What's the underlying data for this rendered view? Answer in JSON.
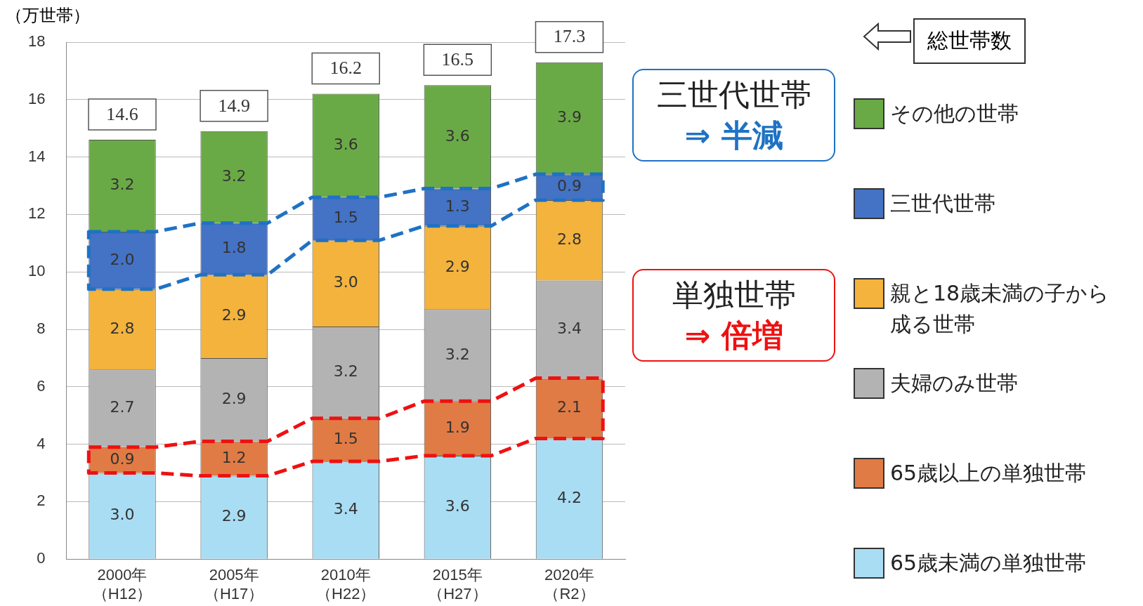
{
  "chart_data": {
    "type": "bar",
    "stacked": true,
    "ylabel": "（万世帯）",
    "legend_title": "総世帯数",
    "categories": [
      "2000年（H12）",
      "2005年（H17）",
      "2010年（H22）",
      "2015年（H27）",
      "2020年（R2）"
    ],
    "series": [
      {
        "name": "65歳未満の単独世帯",
        "color": "#a9ddf3",
        "values": [
          3.0,
          2.9,
          3.4,
          3.6,
          4.2
        ],
        "value_labels": [
          "3.0",
          "2.9",
          "3.4",
          "3.6",
          "4.2"
        ]
      },
      {
        "name": "65歳以上の単独世帯",
        "color": "#e07b45",
        "values": [
          0.9,
          1.2,
          1.5,
          1.9,
          2.1
        ],
        "value_labels": [
          "0.9",
          "1.2",
          "1.5",
          "1.9",
          "2.1"
        ]
      },
      {
        "name": "夫婦のみ世帯",
        "color": "#b3b3b3",
        "values": [
          2.7,
          2.9,
          3.2,
          3.2,
          3.4
        ],
        "value_labels": [
          "2.7",
          "2.9",
          "3.2",
          "3.2",
          "3.4"
        ]
      },
      {
        "name": "親と18歳未満の子から成る世帯",
        "color": "#f3b33d",
        "values": [
          2.8,
          2.9,
          3.0,
          2.9,
          2.8
        ],
        "value_labels": [
          "2.8",
          "2.9",
          "3.0",
          "2.9",
          "2.8"
        ]
      },
      {
        "name": "三世代世帯",
        "color": "#4472c4",
        "values": [
          2.0,
          1.8,
          1.5,
          1.3,
          0.9
        ],
        "value_labels": [
          "2.0",
          "1.8",
          "1.5",
          "1.3",
          "0.9"
        ]
      },
      {
        "name": "その他の世帯",
        "color": "#6aaa46",
        "values": [
          3.2,
          3.2,
          3.6,
          3.6,
          3.9
        ],
        "value_labels": [
          "3.2",
          "3.2",
          "3.6",
          "3.6",
          "3.9"
        ]
      }
    ],
    "totals": [
      "14.6",
      "14.9",
      "16.2",
      "16.5",
      "17.3"
    ],
    "ylim": [
      0,
      18
    ],
    "yticks": [
      0,
      2,
      4,
      6,
      8,
      10,
      12,
      14,
      16,
      18
    ],
    "grid": "y",
    "legend": "right",
    "annotations": [
      "三世代世帯\n⇒ 半減",
      "単独世帯\n⇒ 倍増"
    ]
  }
}
